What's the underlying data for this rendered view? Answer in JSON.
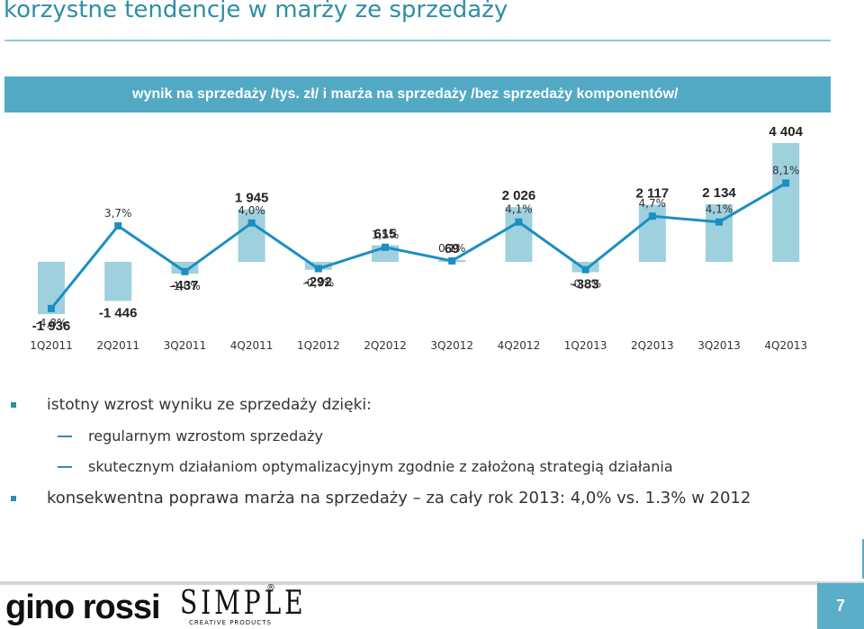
{
  "slide": {
    "title": "korzystne tendencje w marży ze sprzedaży",
    "page_number": "7",
    "accent_color": "#2e8ea8"
  },
  "chart_data": {
    "type": "bar",
    "title": "wynik na sprzedaży /tys. zł/ i marża na sprzedaży /bez  sprzedaży komponentów/",
    "categories": [
      "1Q2011",
      "2Q2011",
      "3Q2011",
      "4Q2011",
      "1Q2012",
      "2Q2012",
      "3Q2012",
      "4Q2012",
      "1Q2013",
      "2Q2013",
      "3Q2013",
      "4Q2013"
    ],
    "series": [
      {
        "type": "bar",
        "values": [
          -1936,
          -1446,
          -437,
          1945,
          -292,
          615,
          69,
          2026,
          -383,
          2117,
          2134,
          4404
        ],
        "labels": [
          "-1 936",
          "-1 446",
          "-437",
          "1 945",
          "-292",
          "615",
          "69",
          "2 026",
          "-383",
          "2 117",
          "2 134",
          "4 404"
        ],
        "color": "#9ed0de"
      },
      {
        "type": "line",
        "values": [
          -4.8,
          3.7,
          -1.0,
          4.0,
          -0.7,
          1.5,
          0.1,
          4.1,
          -0.8,
          4.7,
          4.1,
          8.1
        ],
        "labels": [
          "-4,8%",
          "3,7%",
          "-1,0%",
          "4,0%",
          "-0,7%",
          "1,5%",
          "0,1%",
          "4,1%",
          "-0,8%",
          "4,7%",
          "4,1%",
          "8,1%"
        ],
        "color": "#1a8fc2"
      }
    ],
    "legend": "none",
    "grid": false
  },
  "bullets": {
    "main1": "istotny wzrost wyniku ze sprzedaży dzięki:",
    "sub1": "regularnym wzrostom sprzedaży",
    "sub2": "skutecznym działaniom optymalizacyjnym zgodnie z założoną strategią działania",
    "main2": "konsekwentna poprawa marża na sprzedaży  – za cały rok 2013: 4,0% vs. 1.3% w 2012"
  },
  "footer": {
    "logo_text": "gino rossi",
    "brand_text": "SIMPLE",
    "brand_mark": "®",
    "brand_sub": "CREATIVE PRODUCTS"
  }
}
